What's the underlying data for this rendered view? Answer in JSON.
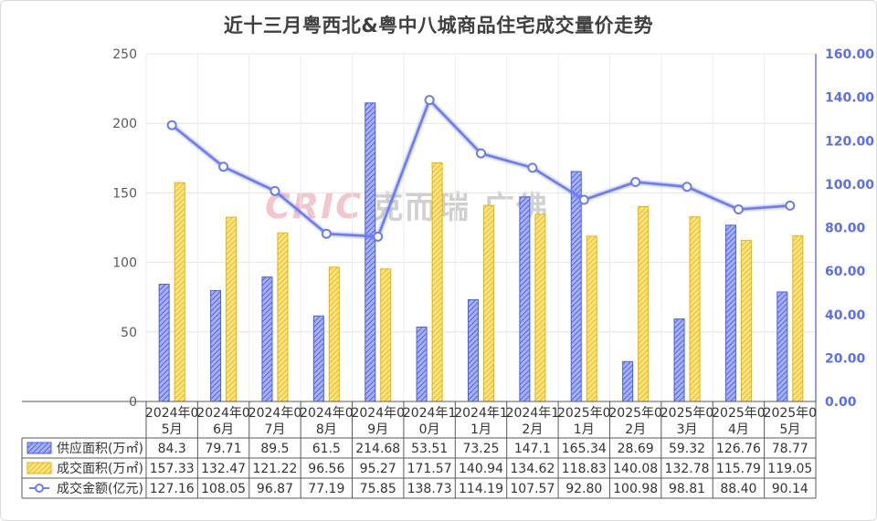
{
  "chart_data": {
    "type": "bar+line",
    "title": "近十三月粤西北&粤中八城商品住宅成交量价走势",
    "categories": [
      "2024年05月",
      "2024年06月",
      "2024年07月",
      "2024年08月",
      "2024年09月",
      "2024年10月",
      "2024年11月",
      "2024年12月",
      "2025年01月",
      "2025年02月",
      "2025年03月",
      "2025年04月",
      "2025年05月"
    ],
    "left_axis": {
      "ylim": [
        0,
        250
      ],
      "ticks": [
        0,
        50,
        100,
        150,
        200,
        250
      ]
    },
    "right_axis": {
      "ylim": [
        0,
        160
      ],
      "ticks": [
        "0.00",
        "20.00",
        "40.00",
        "60.00",
        "80.00",
        "100.00",
        "120.00",
        "140.00",
        "160.00"
      ]
    },
    "series": [
      {
        "name": "供应面积(万㎡)",
        "type": "bar",
        "axis": "left",
        "color": "#6b7cf0",
        "values": [
          84.3,
          79.71,
          89.5,
          61.5,
          214.68,
          53.51,
          73.25,
          147.1,
          165.34,
          28.69,
          59.32,
          126.76,
          78.77
        ],
        "labels": [
          "84.3",
          "79.71",
          "89.5",
          "61.5",
          "214.68",
          "53.51",
          "73.25",
          "147.1",
          "165.34",
          "28.69",
          "59.32",
          "126.76",
          "78.77"
        ]
      },
      {
        "name": "成交面积(万㎡)",
        "type": "bar",
        "axis": "left",
        "color": "#f5c518",
        "values": [
          157.33,
          132.47,
          121.22,
          96.56,
          95.27,
          171.57,
          140.94,
          134.62,
          118.83,
          140.08,
          132.78,
          115.79,
          119.05
        ],
        "labels": [
          "157.33",
          "132.47",
          "121.22",
          "96.56",
          "95.27",
          "171.57",
          "140.94",
          "134.62",
          "118.83",
          "140.08",
          "132.78",
          "115.79",
          "119.05"
        ]
      },
      {
        "name": "成交金额(亿元)",
        "type": "line",
        "axis": "right",
        "color": "#6b7cf0",
        "values": [
          127.16,
          108.05,
          96.87,
          77.19,
          75.85,
          138.73,
          114.19,
          107.57,
          92.8,
          100.98,
          98.81,
          88.4,
          90.14
        ],
        "labels": [
          "127.16",
          "108.05",
          "96.87",
          "77.19",
          "75.85",
          "138.73",
          "114.19",
          "107.57",
          "92.80",
          "100.98",
          "98.81",
          "88.40",
          "90.14"
        ]
      }
    ],
    "grid": true,
    "legend": "table-below"
  },
  "watermark": {
    "brand": "CRIC",
    "cn": "克而瑞 广佛"
  }
}
